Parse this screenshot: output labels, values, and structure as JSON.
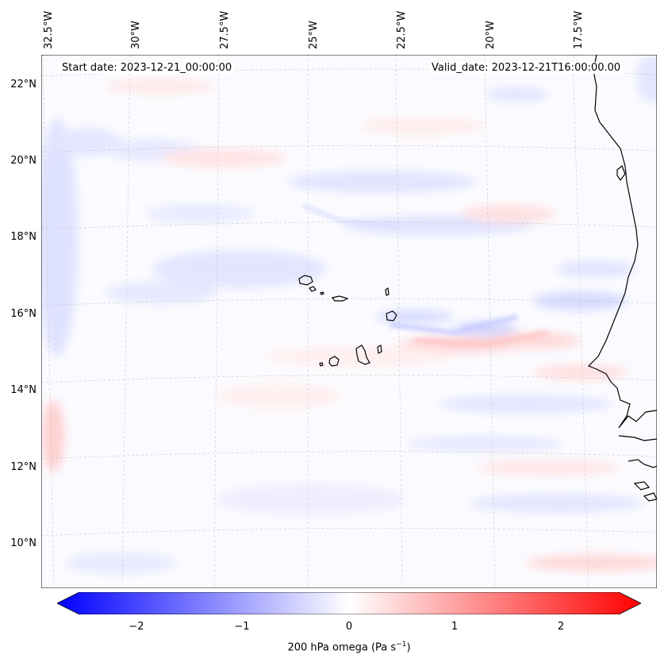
{
  "map": {
    "annotations": {
      "start": "Start date: 2023-12-21_00:00:00",
      "valid": "Valid_date: 2023-12-21T16:00:00.00"
    },
    "longitude_labels": [
      "32.5°W",
      "30°W",
      "27.5°W",
      "25°W",
      "22.5°W",
      "20°W",
      "17.5°W"
    ],
    "latitude_labels": [
      "22°N",
      "20°N",
      "18°N",
      "16°N",
      "14°N",
      "12°N",
      "10°N"
    ],
    "field": "200 hPa omega",
    "features": [
      "Cape Verde islands",
      "West African coastline"
    ]
  },
  "colorbar": {
    "ticks": [
      "−2",
      "−1",
      "0",
      "1",
      "2"
    ],
    "label_main": "200 hPa omega (Pa s",
    "label_exp": "−1",
    "label_close": ")",
    "range": [
      -2.6,
      2.6
    ],
    "colors": {
      "neg": "#0000ff",
      "mid": "#ffffff",
      "pos": "#ff0000"
    }
  }
}
